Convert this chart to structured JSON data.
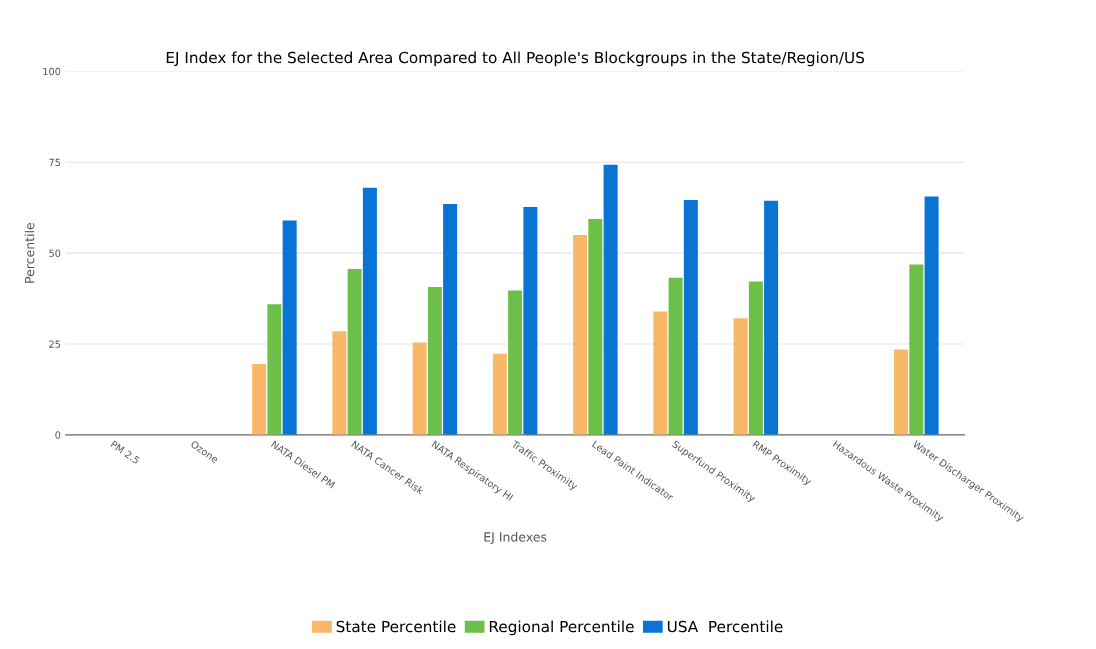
{
  "chart_data": {
    "type": "bar",
    "title": "EJ Index for the Selected Area Compared to All People's Blockgroups in the State/Region/US",
    "xlabel": "EJ Indexes",
    "ylabel": "Percentile",
    "categories": [
      "PM 2.5",
      "Ozone",
      "NATA Diesel PM",
      "NATA Cancer Risk",
      "NATA Respiratory HI",
      "Traffic Proximity",
      "Lead Paint Indicator",
      "Superfund Proximity",
      "RMP Proximity",
      "Hazardous Waste Proximity",
      "Water Discharger Proximity"
    ],
    "series": [
      {
        "name": "State Percentile",
        "color": "#f9b868",
        "values": [
          null,
          null,
          19.5,
          28.5,
          25.4,
          22.3,
          55,
          33.9,
          32.1,
          null,
          23.5
        ]
      },
      {
        "name": "Regional Percentile",
        "color": "#6cc04a",
        "values": [
          null,
          null,
          35.9,
          45.6,
          40.7,
          39.7,
          59.4,
          43.2,
          42.2,
          null,
          46.9
        ]
      },
      {
        "name": "USA  Percentile",
        "color": "#0a74d4",
        "values": [
          null,
          null,
          59,
          68,
          63.5,
          62.7,
          74.3,
          64.6,
          64.4,
          null,
          65.6
        ]
      }
    ],
    "ylim": [
      0,
      100
    ],
    "yticks": [
      0,
      25,
      50,
      75,
      100
    ],
    "grid": "y",
    "legend": "bottom"
  }
}
